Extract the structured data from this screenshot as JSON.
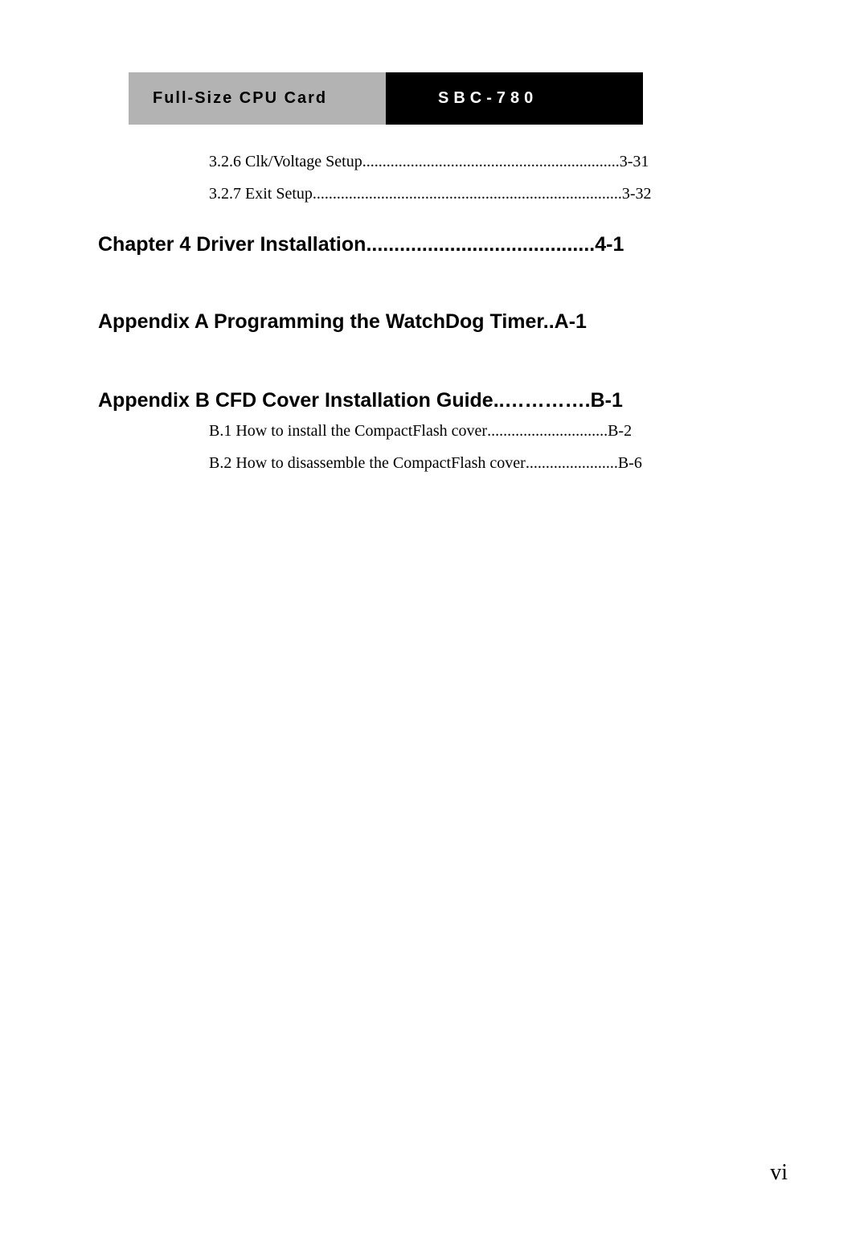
{
  "header": {
    "left": "Full-Size CPU Card",
    "right": "SBC-780"
  },
  "toc": {
    "sub326": {
      "label": "3.2.6 Clk/Voltage Setup",
      "dots": "................................................................",
      "page": "3-31"
    },
    "sub327": {
      "label": "3.2.7 Exit Setup",
      "dots": ".............................................................................",
      "page": "3-32"
    },
    "chapter4": {
      "label": "Chapter 4   Driver Installation",
      "dots": ".........................................",
      "page": "4-1"
    },
    "appendixA": {
      "label": "Appendix A   Programming the WatchDog Timer..",
      "page": "A-1"
    },
    "appendixB": {
      "label": "Appendix B   CFD Cover Installation Guide.. ",
      "dots": "………….",
      "page": "B-1"
    },
    "subB1": {
      "label": "B.1 How to install the CompactFlash cover",
      "dots": "..............................",
      "page": "B-2"
    },
    "subB2": {
      "label": "B.2 How to disassemble the CompactFlash cover",
      "dots": ".......................",
      "page": "B-6"
    }
  },
  "pageNumber": "vi",
  "colors": {
    "headerLeftBg": "#b3b3b3",
    "headerRightBg": "#000000",
    "headerRightText": "#ffffff",
    "bodyText": "#000000",
    "pageBg": "#ffffff"
  },
  "typography": {
    "headerFontSize": 20,
    "sectionFontSize": 25,
    "subsectionFontSize": 20,
    "pageNumberFontSize": 28
  }
}
